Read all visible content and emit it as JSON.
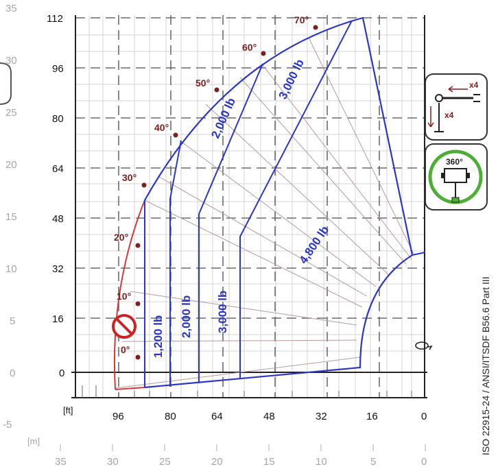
{
  "axes": {
    "left_m_ticks": [
      "35",
      "30",
      "25",
      "20",
      "15",
      "10",
      "5",
      "0",
      "-5"
    ],
    "left_ft_ticks": [
      "112",
      "96",
      "80",
      "64",
      "48",
      "32",
      "16",
      "0"
    ],
    "bottom_ft_ticks": [
      "96",
      "80",
      "64",
      "48",
      "32",
      "16",
      "0"
    ],
    "bottom_m_ticks": [
      "35",
      "30",
      "25",
      "20",
      "15",
      "10",
      "5",
      "0"
    ],
    "ft_unit": "[ft]",
    "m_unit": "[m]"
  },
  "boom_angles": [
    "0°",
    "10°",
    "20°",
    "30°",
    "40°",
    "50°",
    "60°",
    "70°"
  ],
  "load_zones": [
    "1,200 lb",
    "2,000 lb",
    "3,000 lb",
    "2,000 lb",
    "3,000 lb",
    "4,800 lb"
  ],
  "standard": "ISO 22915-24  /  ANSI/ITSDF B56.6 Part III",
  "badges": {
    "outrigger_count_horizontal": "x4",
    "outrigger_count_vertical": "x4",
    "rotation": "360°"
  },
  "icons": {
    "no_load_zone": "prohibited-icon",
    "rotation": "rotation-arrow-icon",
    "outriggers": "outrigger-icon",
    "rotation_badge": "360-rotation-icon"
  },
  "colors": {
    "envelope": "#2b35c8",
    "no_load_edge": "#d23a3a",
    "angle_text": "#7a2020",
    "radial": "#a08a8a",
    "grid_dash": "#6a6a6a",
    "badge_green": "#4caf33",
    "prohibited": "#cc2222"
  }
}
